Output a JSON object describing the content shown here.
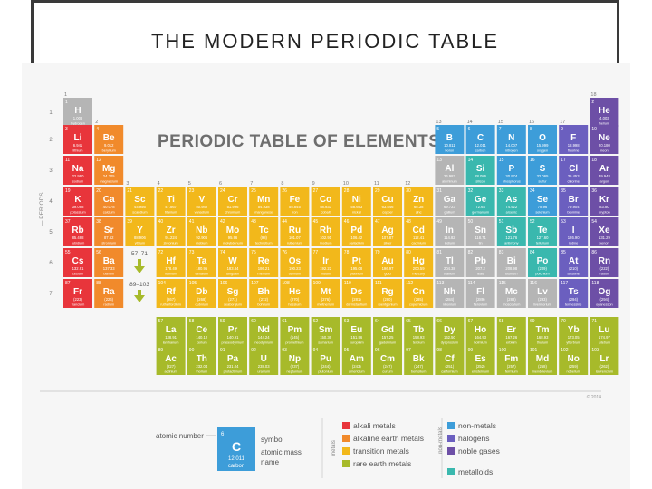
{
  "slide_title": "THE MODERN PERIODIC TABLE",
  "chart_title": "PERIODIC TABLE OF ELEMENTS",
  "periods_label": "— PERIODS",
  "period_numbers": [
    "1",
    "2",
    "3",
    "4",
    "5",
    "6",
    "7"
  ],
  "group_numbers": [
    "1",
    "2",
    "3",
    "4",
    "5",
    "6",
    "7",
    "8",
    "9",
    "10",
    "11",
    "12",
    "13",
    "14",
    "15",
    "16",
    "17",
    "18"
  ],
  "lanthanide_marker": "57–71",
  "actinide_marker": "89–103",
  "copyright": "© 2014",
  "colors": {
    "alkali": "#e8353b",
    "alkaline": "#f18a2b",
    "transition": "#f2b81b",
    "rare": "#a7ba2a",
    "metal": "#b5b5b5",
    "nonmetal": "#3d9dd9",
    "halogen": "#6b5fbf",
    "noble": "#6d4fa6",
    "metalloid": "#3ab8ae",
    "unknown": "#c8c8c8"
  },
  "elements": [
    {
      "n": "1",
      "s": "H",
      "m": "1.008",
      "name": "hydrogen",
      "c": "metal",
      "g": 1,
      "p": 1
    },
    {
      "n": "2",
      "s": "He",
      "m": "4.003",
      "name": "helium",
      "c": "noble",
      "g": 18,
      "p": 1
    },
    {
      "n": "3",
      "s": "Li",
      "m": "6.941",
      "name": "lithium",
      "c": "alkali",
      "g": 1,
      "p": 2
    },
    {
      "n": "4",
      "s": "Be",
      "m": "9.012",
      "name": "beryllium",
      "c": "alkaline",
      "g": 2,
      "p": 2
    },
    {
      "n": "5",
      "s": "B",
      "m": "10.811",
      "name": "boron",
      "c": "nonmetal",
      "g": 13,
      "p": 2
    },
    {
      "n": "6",
      "s": "C",
      "m": "12.011",
      "name": "carbon",
      "c": "nonmetal",
      "g": 14,
      "p": 2
    },
    {
      "n": "7",
      "s": "N",
      "m": "14.007",
      "name": "nitrogen",
      "c": "nonmetal",
      "g": 15,
      "p": 2
    },
    {
      "n": "8",
      "s": "O",
      "m": "15.999",
      "name": "oxygen",
      "c": "nonmetal",
      "g": 16,
      "p": 2
    },
    {
      "n": "9",
      "s": "F",
      "m": "18.998",
      "name": "fluorine",
      "c": "halogen",
      "g": 17,
      "p": 2
    },
    {
      "n": "10",
      "s": "Ne",
      "m": "20.180",
      "name": "neon",
      "c": "noble",
      "g": 18,
      "p": 2
    },
    {
      "n": "11",
      "s": "Na",
      "m": "22.990",
      "name": "sodium",
      "c": "alkali",
      "g": 1,
      "p": 3
    },
    {
      "n": "12",
      "s": "Mg",
      "m": "24.305",
      "name": "magnesium",
      "c": "alkaline",
      "g": 2,
      "p": 3
    },
    {
      "n": "13",
      "s": "Al",
      "m": "26.982",
      "name": "aluminum",
      "c": "metal",
      "g": 13,
      "p": 3
    },
    {
      "n": "14",
      "s": "Si",
      "m": "28.086",
      "name": "silicon",
      "c": "metalloid",
      "g": 14,
      "p": 3
    },
    {
      "n": "15",
      "s": "P",
      "m": "30.974",
      "name": "phosphorus",
      "c": "nonmetal",
      "g": 15,
      "p": 3
    },
    {
      "n": "16",
      "s": "S",
      "m": "32.065",
      "name": "sulfur",
      "c": "nonmetal",
      "g": 16,
      "p": 3
    },
    {
      "n": "17",
      "s": "Cl",
      "m": "35.453",
      "name": "chlorine",
      "c": "halogen",
      "g": 17,
      "p": 3
    },
    {
      "n": "18",
      "s": "Ar",
      "m": "39.948",
      "name": "argon",
      "c": "noble",
      "g": 18,
      "p": 3
    },
    {
      "n": "19",
      "s": "K",
      "m": "39.098",
      "name": "potassium",
      "c": "alkali",
      "g": 1,
      "p": 4
    },
    {
      "n": "20",
      "s": "Ca",
      "m": "40.078",
      "name": "calcium",
      "c": "alkaline",
      "g": 2,
      "p": 4
    },
    {
      "n": "21",
      "s": "Sc",
      "m": "44.956",
      "name": "scandium",
      "c": "transition",
      "g": 3,
      "p": 4
    },
    {
      "n": "22",
      "s": "Ti",
      "m": "47.867",
      "name": "titanium",
      "c": "transition",
      "g": 4,
      "p": 4
    },
    {
      "n": "23",
      "s": "V",
      "m": "50.942",
      "name": "vanadium",
      "c": "transition",
      "g": 5,
      "p": 4
    },
    {
      "n": "24",
      "s": "Cr",
      "m": "51.996",
      "name": "chromium",
      "c": "transition",
      "g": 6,
      "p": 4
    },
    {
      "n": "25",
      "s": "Mn",
      "m": "54.938",
      "name": "manganese",
      "c": "transition",
      "g": 7,
      "p": 4
    },
    {
      "n": "26",
      "s": "Fe",
      "m": "55.845",
      "name": "iron",
      "c": "transition",
      "g": 8,
      "p": 4
    },
    {
      "n": "27",
      "s": "Co",
      "m": "58.933",
      "name": "cobalt",
      "c": "transition",
      "g": 9,
      "p": 4
    },
    {
      "n": "28",
      "s": "Ni",
      "m": "58.693",
      "name": "nickel",
      "c": "transition",
      "g": 10,
      "p": 4
    },
    {
      "n": "29",
      "s": "Cu",
      "m": "63.546",
      "name": "copper",
      "c": "transition",
      "g": 11,
      "p": 4
    },
    {
      "n": "30",
      "s": "Zn",
      "m": "65.38",
      "name": "zinc",
      "c": "transition",
      "g": 12,
      "p": 4
    },
    {
      "n": "31",
      "s": "Ga",
      "m": "69.723",
      "name": "gallium",
      "c": "metal",
      "g": 13,
      "p": 4
    },
    {
      "n": "32",
      "s": "Ge",
      "m": "72.64",
      "name": "germanium",
      "c": "metalloid",
      "g": 14,
      "p": 4
    },
    {
      "n": "33",
      "s": "As",
      "m": "74.922",
      "name": "arsenic",
      "c": "metalloid",
      "g": 15,
      "p": 4
    },
    {
      "n": "34",
      "s": "Se",
      "m": "78.96",
      "name": "selenium",
      "c": "nonmetal",
      "g": 16,
      "p": 4
    },
    {
      "n": "35",
      "s": "Br",
      "m": "79.904",
      "name": "bromine",
      "c": "halogen",
      "g": 17,
      "p": 4
    },
    {
      "n": "36",
      "s": "Kr",
      "m": "83.80",
      "name": "krypton",
      "c": "noble",
      "g": 18,
      "p": 4
    },
    {
      "n": "37",
      "s": "Rb",
      "m": "85.468",
      "name": "rubidium",
      "c": "alkali",
      "g": 1,
      "p": 5
    },
    {
      "n": "38",
      "s": "Sr",
      "m": "87.62",
      "name": "strontium",
      "c": "alkaline",
      "g": 2,
      "p": 5
    },
    {
      "n": "39",
      "s": "Y",
      "m": "88.906",
      "name": "yttrium",
      "c": "transition",
      "g": 3,
      "p": 5
    },
    {
      "n": "40",
      "s": "Zr",
      "m": "91.224",
      "name": "zirconium",
      "c": "transition",
      "g": 4,
      "p": 5
    },
    {
      "n": "41",
      "s": "Nb",
      "m": "92.906",
      "name": "niobium",
      "c": "transition",
      "g": 5,
      "p": 5
    },
    {
      "n": "42",
      "s": "Mo",
      "m": "95.96",
      "name": "molybdenum",
      "c": "transition",
      "g": 6,
      "p": 5
    },
    {
      "n": "43",
      "s": "Tc",
      "m": "(98)",
      "name": "technetium",
      "c": "transition",
      "g": 7,
      "p": 5
    },
    {
      "n": "44",
      "s": "Ru",
      "m": "101.07",
      "name": "ruthenium",
      "c": "transition",
      "g": 8,
      "p": 5
    },
    {
      "n": "45",
      "s": "Rh",
      "m": "102.91",
      "name": "rhodium",
      "c": "transition",
      "g": 9,
      "p": 5
    },
    {
      "n": "46",
      "s": "Pd",
      "m": "106.42",
      "name": "palladium",
      "c": "transition",
      "g": 10,
      "p": 5
    },
    {
      "n": "47",
      "s": "Ag",
      "m": "107.87",
      "name": "silver",
      "c": "transition",
      "g": 11,
      "p": 5
    },
    {
      "n": "48",
      "s": "Cd",
      "m": "112.41",
      "name": "cadmium",
      "c": "transition",
      "g": 12,
      "p": 5
    },
    {
      "n": "49",
      "s": "In",
      "m": "114.82",
      "name": "indium",
      "c": "metal",
      "g": 13,
      "p": 5
    },
    {
      "n": "50",
      "s": "Sn",
      "m": "118.71",
      "name": "tin",
      "c": "metal",
      "g": 14,
      "p": 5
    },
    {
      "n": "51",
      "s": "Sb",
      "m": "121.76",
      "name": "antimony",
      "c": "metalloid",
      "g": 15,
      "p": 5
    },
    {
      "n": "52",
      "s": "Te",
      "m": "127.60",
      "name": "tellurium",
      "c": "metalloid",
      "g": 16,
      "p": 5
    },
    {
      "n": "53",
      "s": "I",
      "m": "126.90",
      "name": "iodine",
      "c": "halogen",
      "g": 17,
      "p": 5
    },
    {
      "n": "54",
      "s": "Xe",
      "m": "131.29",
      "name": "xenon",
      "c": "noble",
      "g": 18,
      "p": 5
    },
    {
      "n": "55",
      "s": "Cs",
      "m": "132.91",
      "name": "cesium",
      "c": "alkali",
      "g": 1,
      "p": 6
    },
    {
      "n": "56",
      "s": "Ba",
      "m": "137.33",
      "name": "barium",
      "c": "alkaline",
      "g": 2,
      "p": 6
    },
    {
      "n": "72",
      "s": "Hf",
      "m": "178.49",
      "name": "hafnium",
      "c": "transition",
      "g": 4,
      "p": 6
    },
    {
      "n": "73",
      "s": "Ta",
      "m": "180.95",
      "name": "tantalum",
      "c": "transition",
      "g": 5,
      "p": 6
    },
    {
      "n": "74",
      "s": "W",
      "m": "183.84",
      "name": "tungsten",
      "c": "transition",
      "g": 6,
      "p": 6
    },
    {
      "n": "75",
      "s": "Re",
      "m": "186.21",
      "name": "rhenium",
      "c": "transition",
      "g": 7,
      "p": 6
    },
    {
      "n": "76",
      "s": "Os",
      "m": "190.23",
      "name": "osmium",
      "c": "transition",
      "g": 8,
      "p": 6
    },
    {
      "n": "77",
      "s": "Ir",
      "m": "192.22",
      "name": "iridium",
      "c": "transition",
      "g": 9,
      "p": 6
    },
    {
      "n": "78",
      "s": "Pt",
      "m": "195.08",
      "name": "platinum",
      "c": "transition",
      "g": 10,
      "p": 6
    },
    {
      "n": "79",
      "s": "Au",
      "m": "196.97",
      "name": "gold",
      "c": "transition",
      "g": 11,
      "p": 6
    },
    {
      "n": "80",
      "s": "Hg",
      "m": "200.59",
      "name": "mercury",
      "c": "transition",
      "g": 12,
      "p": 6
    },
    {
      "n": "81",
      "s": "Tl",
      "m": "204.38",
      "name": "thallium",
      "c": "metal",
      "g": 13,
      "p": 6
    },
    {
      "n": "82",
      "s": "Pb",
      "m": "207.2",
      "name": "lead",
      "c": "metal",
      "g": 14,
      "p": 6
    },
    {
      "n": "83",
      "s": "Bi",
      "m": "208.98",
      "name": "bismuth",
      "c": "metal",
      "g": 15,
      "p": 6
    },
    {
      "n": "84",
      "s": "Po",
      "m": "(209)",
      "name": "polonium",
      "c": "metalloid",
      "g": 16,
      "p": 6
    },
    {
      "n": "85",
      "s": "At",
      "m": "(210)",
      "name": "astatine",
      "c": "halogen",
      "g": 17,
      "p": 6
    },
    {
      "n": "86",
      "s": "Rn",
      "m": "(222)",
      "name": "radon",
      "c": "noble",
      "g": 18,
      "p": 6
    },
    {
      "n": "87",
      "s": "Fr",
      "m": "(223)",
      "name": "francium",
      "c": "alkali",
      "g": 1,
      "p": 7
    },
    {
      "n": "88",
      "s": "Ra",
      "m": "(226)",
      "name": "radium",
      "c": "alkaline",
      "g": 2,
      "p": 7
    },
    {
      "n": "104",
      "s": "Rf",
      "m": "(267)",
      "name": "rutherfordium",
      "c": "transition",
      "g": 4,
      "p": 7
    },
    {
      "n": "105",
      "s": "Db",
      "m": "(268)",
      "name": "dubnium",
      "c": "transition",
      "g": 5,
      "p": 7
    },
    {
      "n": "106",
      "s": "Sg",
      "m": "(271)",
      "name": "seaborgium",
      "c": "transition",
      "g": 6,
      "p": 7
    },
    {
      "n": "107",
      "s": "Bh",
      "m": "(272)",
      "name": "bohrium",
      "c": "transition",
      "g": 7,
      "p": 7
    },
    {
      "n": "108",
      "s": "Hs",
      "m": "(270)",
      "name": "hassium",
      "c": "transition",
      "g": 8,
      "p": 7
    },
    {
      "n": "109",
      "s": "Mt",
      "m": "(276)",
      "name": "meitnerium",
      "c": "transition",
      "g": 9,
      "p": 7
    },
    {
      "n": "110",
      "s": "Ds",
      "m": "(281)",
      "name": "darmstadtium",
      "c": "transition",
      "g": 10,
      "p": 7
    },
    {
      "n": "111",
      "s": "Rg",
      "m": "(280)",
      "name": "roentgenium",
      "c": "transition",
      "g": 11,
      "p": 7
    },
    {
      "n": "112",
      "s": "Cn",
      "m": "(285)",
      "name": "copernicium",
      "c": "transition",
      "g": 12,
      "p": 7
    },
    {
      "n": "113",
      "s": "Nh",
      "m": "(284)",
      "name": "nihonium",
      "c": "metal",
      "g": 13,
      "p": 7
    },
    {
      "n": "114",
      "s": "Fl",
      "m": "(289)",
      "name": "flerovium",
      "c": "metal",
      "g": 14,
      "p": 7
    },
    {
      "n": "115",
      "s": "Mc",
      "m": "(288)",
      "name": "moscovium",
      "c": "metal",
      "g": 15,
      "p": 7
    },
    {
      "n": "116",
      "s": "Lv",
      "m": "(293)",
      "name": "livermorium",
      "c": "metal",
      "g": 16,
      "p": 7
    },
    {
      "n": "117",
      "s": "Ts",
      "m": "(294)",
      "name": "tennessine",
      "c": "halogen",
      "g": 17,
      "p": 7
    },
    {
      "n": "118",
      "s": "Og",
      "m": "(294)",
      "name": "oganesson",
      "c": "noble",
      "g": 18,
      "p": 7
    },
    {
      "n": "57",
      "s": "La",
      "m": "138.91",
      "name": "lanthanum",
      "c": "rare",
      "g": 4,
      "p": 8
    },
    {
      "n": "58",
      "s": "Ce",
      "m": "140.12",
      "name": "cerium",
      "c": "rare",
      "g": 5,
      "p": 8
    },
    {
      "n": "59",
      "s": "Pr",
      "m": "140.91",
      "name": "praseodymium",
      "c": "rare",
      "g": 6,
      "p": 8
    },
    {
      "n": "60",
      "s": "Nd",
      "m": "144.24",
      "name": "neodymium",
      "c": "rare",
      "g": 7,
      "p": 8
    },
    {
      "n": "61",
      "s": "Pm",
      "m": "(145)",
      "name": "promethium",
      "c": "rare",
      "g": 8,
      "p": 8
    },
    {
      "n": "62",
      "s": "Sm",
      "m": "150.36",
      "name": "samarium",
      "c": "rare",
      "g": 9,
      "p": 8
    },
    {
      "n": "63",
      "s": "Eu",
      "m": "151.96",
      "name": "europium",
      "c": "rare",
      "g": 10,
      "p": 8
    },
    {
      "n": "64",
      "s": "Gd",
      "m": "157.25",
      "name": "gadolinium",
      "c": "rare",
      "g": 11,
      "p": 8
    },
    {
      "n": "65",
      "s": "Tb",
      "m": "158.93",
      "name": "terbium",
      "c": "rare",
      "g": 12,
      "p": 8
    },
    {
      "n": "66",
      "s": "Dy",
      "m": "162.50",
      "name": "dysprosium",
      "c": "rare",
      "g": 13,
      "p": 8
    },
    {
      "n": "67",
      "s": "Ho",
      "m": "164.93",
      "name": "holmium",
      "c": "rare",
      "g": 14,
      "p": 8
    },
    {
      "n": "68",
      "s": "Er",
      "m": "167.26",
      "name": "erbium",
      "c": "rare",
      "g": 15,
      "p": 8
    },
    {
      "n": "69",
      "s": "Tm",
      "m": "168.93",
      "name": "thulium",
      "c": "rare",
      "g": 16,
      "p": 8
    },
    {
      "n": "70",
      "s": "Yb",
      "m": "173.05",
      "name": "ytterbium",
      "c": "rare",
      "g": 17,
      "p": 8
    },
    {
      "n": "71",
      "s": "Lu",
      "m": "174.97",
      "name": "lutetium",
      "c": "rare",
      "g": 18,
      "p": 8
    },
    {
      "n": "89",
      "s": "Ac",
      "m": "(227)",
      "name": "actinium",
      "c": "rare",
      "g": 4,
      "p": 9
    },
    {
      "n": "90",
      "s": "Th",
      "m": "232.04",
      "name": "thorium",
      "c": "rare",
      "g": 5,
      "p": 9
    },
    {
      "n": "91",
      "s": "Pa",
      "m": "231.04",
      "name": "protactinium",
      "c": "rare",
      "g": 6,
      "p": 9
    },
    {
      "n": "92",
      "s": "U",
      "m": "238.03",
      "name": "uranium",
      "c": "rare",
      "g": 7,
      "p": 9
    },
    {
      "n": "93",
      "s": "Np",
      "m": "(237)",
      "name": "neptunium",
      "c": "rare",
      "g": 8,
      "p": 9
    },
    {
      "n": "94",
      "s": "Pu",
      "m": "(244)",
      "name": "plutonium",
      "c": "rare",
      "g": 9,
      "p": 9
    },
    {
      "n": "95",
      "s": "Am",
      "m": "(243)",
      "name": "americium",
      "c": "rare",
      "g": 10,
      "p": 9
    },
    {
      "n": "96",
      "s": "Cm",
      "m": "(247)",
      "name": "curium",
      "c": "rare",
      "g": 11,
      "p": 9
    },
    {
      "n": "97",
      "s": "Bk",
      "m": "(247)",
      "name": "berkelium",
      "c": "rare",
      "g": 12,
      "p": 9
    },
    {
      "n": "98",
      "s": "Cf",
      "m": "(251)",
      "name": "californium",
      "c": "rare",
      "g": 13,
      "p": 9
    },
    {
      "n": "99",
      "s": "Es",
      "m": "(252)",
      "name": "einsteinium",
      "c": "rare",
      "g": 14,
      "p": 9
    },
    {
      "n": "100",
      "s": "Fm",
      "m": "(257)",
      "name": "fermium",
      "c": "rare",
      "g": 15,
      "p": 9
    },
    {
      "n": "101",
      "s": "Md",
      "m": "(258)",
      "name": "mendelevium",
      "c": "rare",
      "g": 16,
      "p": 9
    },
    {
      "n": "102",
      "s": "No",
      "m": "(259)",
      "name": "nobelium",
      "c": "rare",
      "g": 17,
      "p": 9
    },
    {
      "n": "103",
      "s": "Lr",
      "m": "(262)",
      "name": "lawrencium",
      "c": "rare",
      "g": 18,
      "p": 9
    }
  ],
  "key": {
    "atomic_number_label": "atomic number",
    "number": "6",
    "symbol": "C",
    "mass": "12.011",
    "name": "carbon",
    "symbol_label": "symbol",
    "mass_label": "atomic mass",
    "name_label": "name"
  },
  "legend": {
    "metals_heading": "metals",
    "nonmetals_heading": "non-metals",
    "metals": [
      {
        "label": "alkali metals",
        "c": "alkali"
      },
      {
        "label": "alkaline earth metals",
        "c": "alkaline"
      },
      {
        "label": "transition metals",
        "c": "transition"
      },
      {
        "label": "rare earth metals",
        "c": "rare"
      }
    ],
    "nonmetals": [
      {
        "label": "non-metals",
        "c": "nonmetal"
      },
      {
        "label": "halogens",
        "c": "halogen"
      },
      {
        "label": "noble gases",
        "c": "noble"
      }
    ],
    "metalloids": {
      "label": "metalloids",
      "c": "metalloid"
    }
  }
}
